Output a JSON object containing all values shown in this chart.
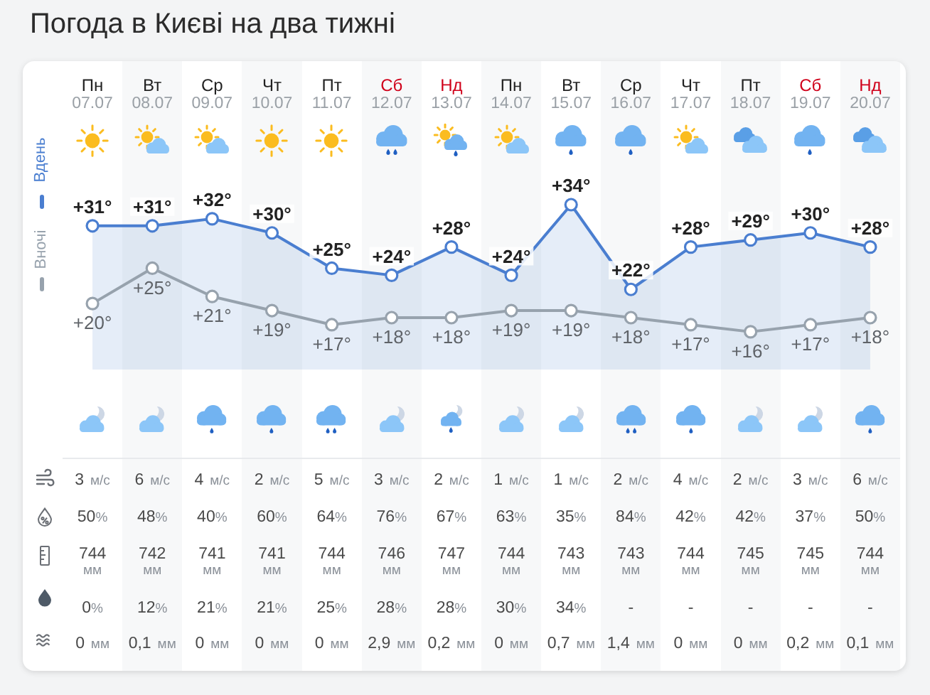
{
  "chart_data": [
    {
      "type": "line",
      "title": "Погода в Києві на два тижні",
      "categories": [
        "Пн\n07.07",
        "Вт\n08.07",
        "Ср\n09.07",
        "Чт\n10.07",
        "Пт\n11.07",
        "Сб\n12.07",
        "Нд\n13.07",
        "Пн\n14.07",
        "Вт\n15.07",
        "Ср\n16.07",
        "Чт\n17.07",
        "Пт\n18.07",
        "Сб\n19.07",
        "Нд\n20.07"
      ],
      "series": [
        {
          "name": "Вдень",
          "type": "area",
          "color": "#4a7ed0",
          "values": [
            31,
            31,
            32,
            30,
            25,
            24,
            28,
            24,
            34,
            22,
            28,
            29,
            30,
            28
          ],
          "value_labels": [
            "+31°",
            "+31°",
            "+32°",
            "+30°",
            "+25°",
            "+24°",
            "+28°",
            "+24°",
            "+34°",
            "+22°",
            "+28°",
            "+29°",
            "+30°",
            "+28°"
          ]
        },
        {
          "name": "Вночі",
          "color": "#97a2ad",
          "values": [
            20,
            25,
            21,
            19,
            17,
            18,
            18,
            19,
            19,
            18,
            17,
            16,
            17,
            18
          ],
          "value_labels": [
            "+20°",
            "+25°",
            "+21°",
            "+19°",
            "+17°",
            "+18°",
            "+18°",
            "+19°",
            "+19°",
            "+18°",
            "+17°",
            "+16°",
            "+17°",
            "+18°"
          ]
        }
      ],
      "marker": "circle",
      "legend": "left",
      "tick_labels": "x"
    },
    {
      "type": "other",
      "annotations": [
        "3 м/с",
        "6 м/с",
        "4 м/с",
        "2 м/с",
        "5 м/с",
        "3 м/с",
        "2 м/с",
        "1 м/с",
        "1 м/с",
        "2 м/с",
        "4 м/с",
        "2 м/с",
        "3 м/с",
        "6 м/с",
        "50%",
        "48%",
        "40%",
        "60%",
        "64%",
        "76%",
        "67%",
        "63%",
        "35%",
        "84%",
        "42%",
        "42%",
        "37%",
        "50%",
        "744 мм",
        "742 мм",
        "741 мм",
        "741 мм",
        "744 мм",
        "746 мм",
        "747 мм",
        "744 мм",
        "743 мм",
        "743 мм",
        "744 мм",
        "745 мм",
        "745 мм",
        "744 мм",
        "0%",
        "12%",
        "21%",
        "21%",
        "25%",
        "28%",
        "28%",
        "30%",
        "34%",
        "-",
        "-",
        "-",
        "-",
        "-",
        "0 мм",
        "0,1 мм",
        "0 мм",
        "0 мм",
        "0 мм",
        "2,9 мм",
        "0,2 мм",
        "0 мм",
        "0,7 мм",
        "1,4 мм",
        "0 мм",
        "0 мм",
        "0,2 мм",
        "0,1 мм"
      ]
    }
  ]
}
